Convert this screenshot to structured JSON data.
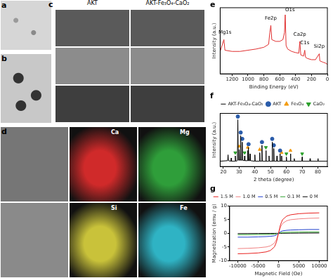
{
  "image_panels": [
    {
      "label": "a"
    },
    {
      "label": "b"
    },
    {
      "label": "c",
      "columns": [
        "AKT",
        "AKT-Fe₃O₄-CaO₂"
      ]
    },
    {
      "label": "d",
      "maps": [
        "Ca",
        "Mg",
        "Si",
        "Fe"
      ],
      "colors": [
        "#d02a2a",
        "#2f9e3a",
        "#c9c23a",
        "#2fb3c4"
      ]
    }
  ],
  "chart_data": [
    {
      "label": "e",
      "type": "line",
      "x_label": "Binding Energy (eV)",
      "y_label": "Intensity (a.u.)",
      "x": [
        1350,
        1303,
        1290,
        1200,
        1100,
        1000,
        900,
        800,
        740,
        725,
        712,
        700,
        650,
        600,
        560,
        540,
        531,
        520,
        500,
        450,
        400,
        360,
        347,
        335,
        300,
        285,
        275,
        250,
        200,
        150,
        102,
        95,
        60,
        20,
        0
      ],
      "series": [
        {
          "color": "#e03030",
          "values": [
            38,
            58,
            40,
            38,
            38,
            40,
            42,
            45,
            50,
            70,
            82,
            58,
            55,
            55,
            58,
            70,
            100,
            48,
            42,
            38,
            36,
            35,
            55,
            32,
            30,
            40,
            28,
            26,
            24,
            24,
            34,
            22,
            20,
            18,
            16
          ]
        }
      ],
      "annotations": [
        {
          "text": "Mg1s",
          "x": 1290,
          "y": 66
        },
        {
          "text": "Fe2p",
          "x": 712,
          "y": 90
        },
        {
          "text": "O1s",
          "x": 470,
          "y": 104
        },
        {
          "text": "Ca2p",
          "x": 347,
          "y": 62
        },
        {
          "text": "C1s",
          "x": 285,
          "y": 48
        },
        {
          "text": "Si2p",
          "x": 102,
          "y": 42
        }
      ],
      "xlim": [
        1350,
        0
      ],
      "xticks": [
        1200,
        1000,
        800,
        600,
        400,
        200,
        0
      ],
      "ylim": [
        0,
        112
      ],
      "tick_labels": "x",
      "grid": false
    },
    {
      "label": "f",
      "type": "line",
      "x_label": "2 theta (degree)",
      "y_label": "Intensity (a.u.)",
      "series": [
        {
          "name": "AKT-Fe₃O₄-CaO₂",
          "type": "line",
          "color": "#000000",
          "marker": "none",
          "x": [
            18,
            22.7,
            23,
            23.3,
            24.8,
            25,
            25.2,
            27.3,
            27.6,
            27.9,
            28.9,
            29.2,
            29.5,
            29.9,
            30.1,
            30.3,
            30.8,
            31,
            31.2,
            31.8,
            32,
            32.2,
            33.3,
            33.5,
            33.7,
            35.3,
            35.5,
            35.7,
            35.8,
            36,
            36.2,
            36.8,
            37,
            37.2,
            39.8,
            40,
            40.2,
            42.9,
            43.1,
            43.3,
            44.3,
            44.5,
            44.7,
            46.8,
            47,
            47.2,
            48.8,
            49,
            49.2,
            50.8,
            51,
            51.2,
            51.8,
            52,
            52.2,
            53.8,
            54,
            54.2,
            55.8,
            56,
            56.2,
            56.8,
            57,
            57.2,
            59.8,
            60,
            60.2,
            62.4,
            62.6,
            62.8,
            64.8,
            65,
            65.2,
            69.8,
            70,
            70.2,
            74.8,
            75,
            75.2,
            79.8,
            80,
            80.2,
            86
          ],
          "values": [
            10,
            11,
            22,
            11,
            10,
            16,
            10,
            10,
            20,
            10,
            11,
            88,
            12,
            12,
            32,
            12,
            12,
            58,
            12,
            12,
            46,
            12,
            11,
            20,
            11,
            11,
            30,
            11,
            11,
            36,
            11,
            11,
            24,
            11,
            10,
            22,
            10,
            10,
            26,
            10,
            10,
            40,
            10,
            10,
            30,
            10,
            10,
            20,
            10,
            10,
            46,
            10,
            10,
            34,
            10,
            10,
            20,
            10,
            10,
            24,
            10,
            10,
            20,
            10,
            10,
            18,
            10,
            10,
            24,
            10,
            10,
            15,
            10,
            10,
            18,
            10,
            10,
            15,
            10,
            10,
            15,
            10,
            10
          ]
        },
        {
          "name": "AKT",
          "type": "scatter",
          "color": "#2a5caa",
          "marker": "circle",
          "x": [
            29.2,
            31,
            32,
            36,
            44.5,
            51,
            52,
            56
          ],
          "values": [
            94,
            64,
            52,
            42,
            46,
            52,
            40,
            30
          ]
        },
        {
          "name": "Fe₃O₄",
          "type": "scatter",
          "color": "#f39c12",
          "marker": "triangle",
          "x": [
            30.1,
            35.5,
            43.1,
            57,
            62.6
          ],
          "values": [
            38,
            36,
            32,
            26,
            30
          ]
        },
        {
          "name": "CaO₂",
          "type": "scatter",
          "color": "#2ca02c",
          "marker": "triangle-down",
          "x": [
            27.6,
            33.5,
            47,
            60,
            70
          ],
          "values": [
            26,
            26,
            36,
            24,
            24
          ]
        }
      ],
      "xlim": [
        18,
        86
      ],
      "xticks": [
        20,
        30,
        40,
        50,
        60,
        70,
        80
      ],
      "ylim": [
        0,
        100
      ],
      "tick_labels": "x",
      "legend": "upper right",
      "grid": false
    },
    {
      "label": "g",
      "type": "line",
      "x_label": "Magnetic Field (Oe)",
      "y_label": "Magnetization (emu / g)",
      "x": [
        -10000,
        -7500,
        -5000,
        -3000,
        -2000,
        -1000,
        -500,
        0,
        500,
        1000,
        2000,
        3000,
        5000,
        7500,
        10000
      ],
      "series": [
        {
          "name": "1.5 M",
          "color": "#e8201e",
          "values": [
            -7.5,
            -7.4,
            -7.2,
            -6.8,
            -6.3,
            -5.0,
            -3.2,
            0,
            3.2,
            5.0,
            6.3,
            6.8,
            7.2,
            7.4,
            7.5
          ]
        },
        {
          "name": "1.0 M",
          "color": "#f08080",
          "values": [
            -5.6,
            -5.5,
            -5.3,
            -5.0,
            -4.6,
            -3.6,
            -2.3,
            0,
            2.3,
            3.6,
            4.6,
            5.0,
            5.3,
            5.5,
            5.6
          ]
        },
        {
          "name": "0.5 M",
          "color": "#1f3fd0",
          "values": [
            -1.4,
            -1.4,
            -1.3,
            -1.2,
            -1.1,
            -0.9,
            -0.6,
            0,
            0.6,
            0.9,
            1.1,
            1.2,
            1.3,
            1.4,
            1.4
          ]
        },
        {
          "name": "0.1 M",
          "color": "#2ca02c",
          "values": [
            -0.5,
            -0.5,
            -0.45,
            -0.4,
            -0.35,
            -0.3,
            -0.2,
            0,
            0.2,
            0.3,
            0.35,
            0.4,
            0.45,
            0.5,
            0.5
          ]
        },
        {
          "name": "0 M",
          "color": "#000000",
          "values": [
            -0.1,
            -0.08,
            -0.05,
            -0.03,
            -0.02,
            -0.01,
            0,
            0,
            0,
            0.01,
            0.02,
            0.03,
            0.05,
            0.08,
            0.1
          ]
        }
      ],
      "xlim": [
        -12000,
        12000
      ],
      "xticks": [
        -10000,
        -5000,
        0,
        5000,
        10000
      ],
      "ylim": [
        -10,
        10
      ],
      "yticks": [
        -10,
        -5,
        0,
        5,
        10
      ],
      "legend": "upper left",
      "grid": false
    }
  ]
}
